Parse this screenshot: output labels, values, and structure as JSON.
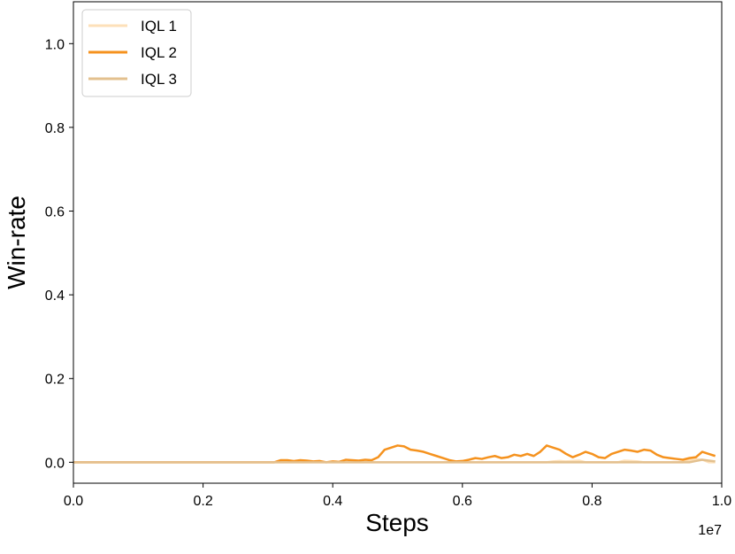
{
  "chart_data": {
    "type": "line",
    "xlabel": "Steps",
    "ylabel": "Win-rate",
    "x_offset_label": "1e7",
    "xlim": [
      0,
      1.0
    ],
    "ylim": [
      -0.05,
      1.1
    ],
    "xticks": [
      {
        "value": 0,
        "label": "0.0"
      },
      {
        "value": 0.2,
        "label": "0.2"
      },
      {
        "value": 0.4,
        "label": "0.4"
      },
      {
        "value": 0.6,
        "label": "0.6"
      },
      {
        "value": 0.8,
        "label": "0.8"
      },
      {
        "value": 1.0,
        "label": "1.0"
      }
    ],
    "yticks": [
      {
        "value": 0,
        "label": "0.0"
      },
      {
        "value": 0.2,
        "label": "0.2"
      },
      {
        "value": 0.4,
        "label": "0.4"
      },
      {
        "value": 0.6,
        "label": "0.6"
      },
      {
        "value": 0.8,
        "label": "0.8"
      },
      {
        "value": 1.0,
        "label": "1.0"
      }
    ],
    "legend": "upper left",
    "x": [
      0,
      0.01,
      0.02,
      0.03,
      0.04,
      0.05,
      0.06,
      0.07,
      0.08,
      0.09,
      0.1,
      0.11,
      0.12,
      0.13,
      0.14,
      0.15,
      0.16,
      0.17,
      0.18,
      0.19,
      0.2,
      0.21,
      0.22,
      0.23,
      0.24,
      0.25,
      0.26,
      0.27,
      0.28,
      0.29,
      0.3,
      0.31,
      0.32,
      0.33,
      0.34,
      0.35,
      0.36,
      0.37,
      0.38,
      0.39,
      0.4,
      0.41,
      0.42,
      0.43,
      0.44,
      0.45,
      0.46,
      0.47,
      0.48,
      0.49,
      0.5,
      0.51,
      0.52,
      0.53,
      0.54,
      0.55,
      0.56,
      0.57,
      0.58,
      0.59,
      0.6,
      0.61,
      0.62,
      0.63,
      0.64,
      0.65,
      0.66,
      0.67,
      0.68,
      0.69,
      0.7,
      0.71,
      0.72,
      0.73,
      0.74,
      0.75,
      0.76,
      0.77,
      0.78,
      0.79,
      0.8,
      0.81,
      0.82,
      0.83,
      0.84,
      0.85,
      0.86,
      0.87,
      0.88,
      0.89,
      0.9,
      0.91,
      0.92,
      0.93,
      0.94,
      0.95,
      0.96,
      0.97,
      0.98,
      0.99
    ],
    "series": [
      {
        "name": "IQL 1",
        "color": "#fde0b9",
        "values": [
          0,
          0,
          0,
          0,
          0,
          0,
          0,
          0,
          0,
          0,
          0,
          0,
          0,
          0,
          0,
          0,
          0,
          0,
          0,
          0,
          0,
          0,
          0,
          0,
          0,
          0,
          0,
          0,
          0,
          0,
          0,
          0,
          0,
          0,
          0,
          0,
          0,
          0,
          0,
          0,
          0,
          0,
          0,
          0,
          0,
          0,
          0,
          0,
          0,
          0,
          0,
          0,
          0,
          0,
          0,
          0,
          0,
          0,
          0,
          0,
          0,
          0,
          0,
          0,
          0,
          0,
          0,
          0,
          0,
          0,
          0,
          0,
          0,
          0,
          0.002,
          0.003,
          0.002,
          0.003,
          0.004,
          0,
          0,
          0,
          0,
          0,
          0,
          0.004,
          0.003,
          0.002,
          0,
          0,
          0,
          0,
          0,
          0,
          0,
          0.005,
          0.008,
          0.006,
          0,
          0
        ]
      },
      {
        "name": "IQL 2",
        "color": "#f5921e",
        "values": [
          0,
          0,
          0,
          0,
          0,
          0,
          0,
          0,
          0,
          0,
          0,
          0,
          0,
          0,
          0,
          0,
          0,
          0,
          0,
          0,
          0,
          0,
          0,
          0,
          0,
          0,
          0,
          0,
          0,
          0,
          0,
          0,
          0.005,
          0.005,
          0.003,
          0.005,
          0.004,
          0.002,
          0.003,
          0,
          0.002,
          0.001,
          0.006,
          0.005,
          0.004,
          0.006,
          0.005,
          0.012,
          0.03,
          0.035,
          0.04,
          0.038,
          0.03,
          0.028,
          0.025,
          0.02,
          0.015,
          0.01,
          0.005,
          0.002,
          0.003,
          0.006,
          0.01,
          0.008,
          0.012,
          0.015,
          0.01,
          0.012,
          0.018,
          0.015,
          0.02,
          0.015,
          0.025,
          0.04,
          0.035,
          0.03,
          0.02,
          0.012,
          0.018,
          0.025,
          0.02,
          0.012,
          0.01,
          0.02,
          0.025,
          0.03,
          0.028,
          0.025,
          0.03,
          0.028,
          0.018,
          0.012,
          0.01,
          0.008,
          0.006,
          0.01,
          0.012,
          0.025,
          0.02,
          0.015
        ]
      },
      {
        "name": "IQL 3",
        "color": "#e3c08e",
        "values": [
          0,
          0,
          0,
          0,
          0,
          0,
          0,
          0,
          0,
          0,
          0,
          0,
          0,
          0,
          0,
          0,
          0,
          0,
          0,
          0,
          0,
          0,
          0,
          0,
          0,
          0,
          0,
          0,
          0,
          0,
          0,
          0,
          0,
          0,
          0,
          0,
          0,
          0,
          0,
          0,
          0,
          0,
          0,
          0,
          0,
          0,
          0,
          0,
          0,
          0,
          0,
          0,
          0,
          0,
          0,
          0,
          0,
          0,
          0,
          0,
          0,
          0,
          0,
          0,
          0,
          0,
          0,
          0,
          0,
          0,
          0,
          0,
          0,
          0,
          0,
          0,
          0,
          0,
          0,
          0,
          0,
          0,
          0,
          0,
          0,
          0,
          0,
          0,
          0,
          0,
          0,
          0,
          0,
          0,
          0,
          0,
          0.003,
          0.006,
          0.004,
          0.002
        ]
      }
    ]
  }
}
